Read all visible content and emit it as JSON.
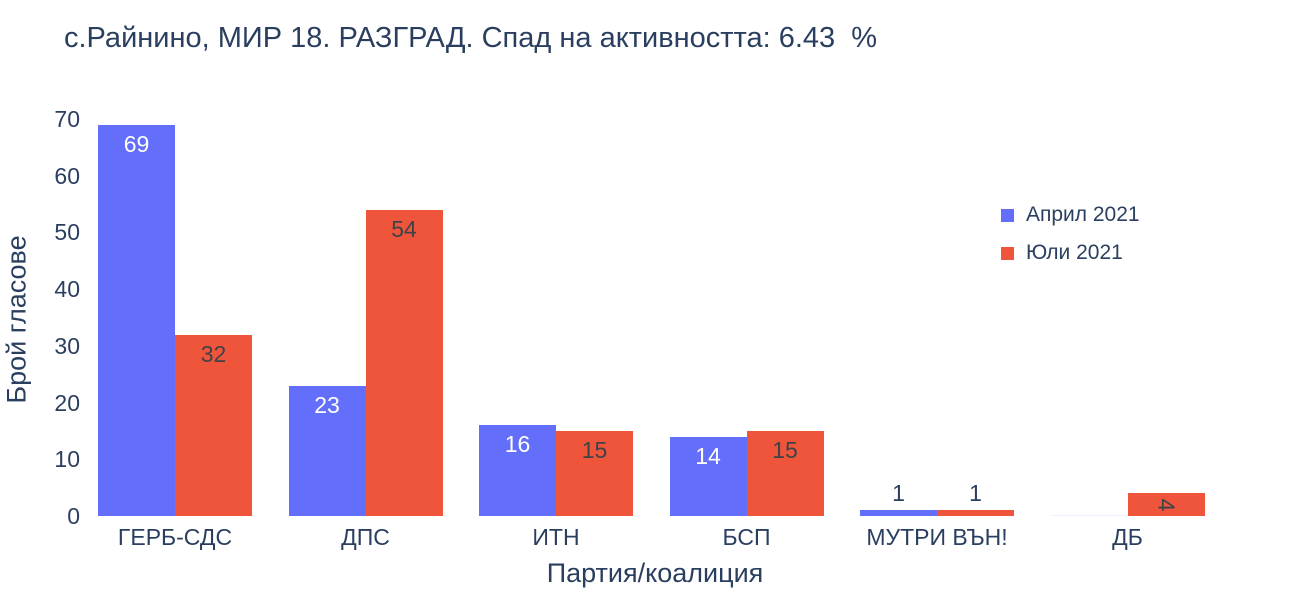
{
  "title": "с.Райнино, МИР 18. РАЗГРАД. Спад на активността: 6.43  %",
  "colors": {
    "text": "#2a3f5f",
    "april_bar": "#636EFA",
    "july_bar": "#EF553B",
    "inside_label_on_april": "#ffffff",
    "inside_label_on_july": "#3f4247",
    "outside_label": "#2a3f5f",
    "zero_bar": "#edeffb",
    "background": "#ffffff"
  },
  "chart_data": {
    "type": "bar",
    "grouping": "grouped",
    "title": "с.Райнино, МИР 18. РАЗГРАД. Спад на активността: 6.43  %",
    "xlabel": "Партия/коалиция",
    "ylabel": "Брой гласове",
    "categories": [
      "ГЕРБ-СДС",
      "ДПС",
      "ИТН",
      "БСП",
      "МУТРИ ВЪН!",
      "ДБ"
    ],
    "series": [
      {
        "name": "Април 2021",
        "color": "#636EFA",
        "values": [
          69,
          23,
          16,
          14,
          1,
          0
        ]
      },
      {
        "name": "Юли 2021",
        "color": "#EF553B",
        "values": [
          32,
          54,
          15,
          15,
          1,
          4
        ]
      }
    ],
    "ylim": [
      0,
      70
    ],
    "yticks": [
      0,
      10,
      20,
      30,
      40,
      50,
      60,
      70
    ],
    "grid": false,
    "legend_position": "right-inside",
    "value_labels": "shown on every bar: inside top of tall bars, above tiny bars, rotated inside narrow short bars"
  }
}
